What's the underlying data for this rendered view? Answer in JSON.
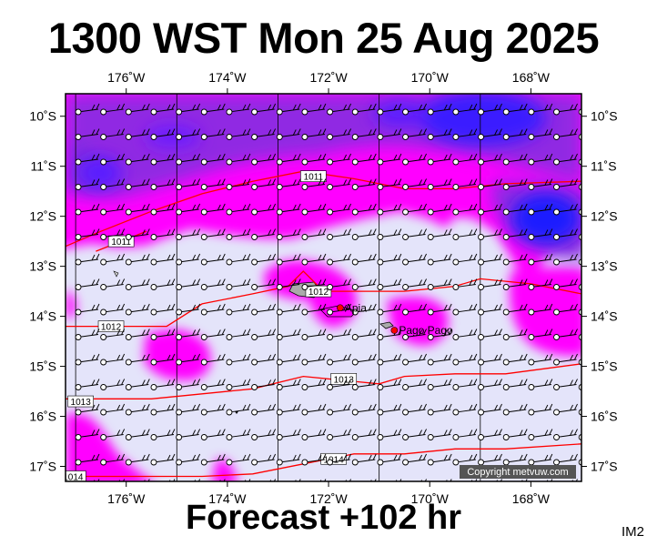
{
  "title": "1300 WST Mon 25 Aug 2025",
  "subtitle": "Forecast +102 hr",
  "product_id": "IM2",
  "copyright": "Copyright metvuw.com",
  "colors": {
    "background_field": "#e4e4fa",
    "magenta_field": "#ff00ff",
    "purple_field": "#8a2be2",
    "blue_field": "#2222ff",
    "isobar": "#ff0000",
    "wind_barb": "#000000"
  },
  "map": {
    "lon_range": [
      -177.2,
      -167.0
    ],
    "lat_range": [
      -17.3,
      -9.55
    ],
    "lon_ticks": [
      {
        "value": -176,
        "label": "176˚W"
      },
      {
        "value": -174,
        "label": "174˚W"
      },
      {
        "value": -172,
        "label": "172˚W"
      },
      {
        "value": -170,
        "label": "170˚W"
      },
      {
        "value": -168,
        "label": "168˚W"
      }
    ],
    "lat_ticks": [
      {
        "value": -10,
        "label": "10˚S"
      },
      {
        "value": -11,
        "label": "11˚S"
      },
      {
        "value": -12,
        "label": "12˚S"
      },
      {
        "value": -13,
        "label": "13˚S"
      },
      {
        "value": -14,
        "label": "14˚S"
      },
      {
        "value": -15,
        "label": "15˚S"
      },
      {
        "value": -16,
        "label": "16˚S"
      },
      {
        "value": -17,
        "label": "17˚S"
      }
    ],
    "places": [
      {
        "name": "Apia",
        "lon": -171.77,
        "lat": -13.83
      },
      {
        "name": "Pago Pago",
        "lon": -170.7,
        "lat": -14.28
      }
    ],
    "isobars": [
      {
        "label": "1011",
        "label_pos": [
          -172.3,
          -11.2
        ],
        "points": [
          [
            -177.2,
            -12.6
          ],
          [
            -176.5,
            -12.3
          ],
          [
            -175.5,
            -11.9
          ],
          [
            -174.5,
            -11.55
          ],
          [
            -173.5,
            -11.3
          ],
          [
            -172.5,
            -11.1
          ],
          [
            -171.5,
            -11.25
          ],
          [
            -170.5,
            -11.45
          ],
          [
            -169.5,
            -11.45
          ],
          [
            -168.5,
            -11.35
          ],
          [
            -167.0,
            -11.3
          ]
        ]
      },
      {
        "label": "1011",
        "label_pos": [
          -176.1,
          -12.5
        ],
        "points": [
          [
            -176.6,
            -12.7
          ],
          [
            -176.1,
            -12.5
          ],
          [
            -175.6,
            -12.3
          ]
        ]
      },
      {
        "label": "1012",
        "label_pos": [
          -172.2,
          -13.5
        ],
        "points": [
          [
            -177.2,
            -14.2
          ],
          [
            -176.0,
            -14.2
          ],
          [
            -175.2,
            -14.2
          ],
          [
            -174.5,
            -13.75
          ],
          [
            -173.5,
            -13.55
          ],
          [
            -172.8,
            -13.4
          ],
          [
            -172.5,
            -13.1
          ],
          [
            -172.1,
            -13.5
          ],
          [
            -171.5,
            -13.5
          ],
          [
            -170.5,
            -13.5
          ],
          [
            -169.5,
            -13.4
          ],
          [
            -169.0,
            -13.25
          ],
          [
            -168.0,
            -13.35
          ],
          [
            -167.0,
            -13.55
          ]
        ]
      },
      {
        "label": "1012",
        "label_pos": [
          -176.3,
          -14.2
        ],
        "points": []
      },
      {
        "label": "1013",
        "label_pos": [
          -171.7,
          -15.25
        ],
        "points": [
          [
            -177.2,
            -15.65
          ],
          [
            -175.5,
            -15.65
          ],
          [
            -174.5,
            -15.55
          ],
          [
            -173.5,
            -15.45
          ],
          [
            -172.5,
            -15.2
          ],
          [
            -171.5,
            -15.3
          ],
          [
            -171.0,
            -15.35
          ],
          [
            -170.5,
            -15.2
          ],
          [
            -169.5,
            -15.15
          ],
          [
            -168.5,
            -15.15
          ],
          [
            -167.0,
            -14.95
          ]
        ]
      },
      {
        "label": "1013",
        "label_pos": [
          -176.9,
          -15.7
        ],
        "points": []
      },
      {
        "label": "1014",
        "label_pos": [
          -171.9,
          -16.85
        ],
        "points": [
          [
            -177.2,
            -17.2
          ],
          [
            -176.0,
            -17.2
          ],
          [
            -174.5,
            -17.2
          ],
          [
            -173.5,
            -17.15
          ],
          [
            -172.5,
            -16.95
          ],
          [
            -171.5,
            -16.75
          ],
          [
            -170.5,
            -16.75
          ],
          [
            -169.5,
            -16.65
          ],
          [
            -168.5,
            -16.65
          ],
          [
            -167.0,
            -16.55
          ]
        ]
      },
      {
        "label": "1014",
        "label_pos": [
          -177.05,
          -17.2
        ],
        "points": []
      }
    ]
  }
}
